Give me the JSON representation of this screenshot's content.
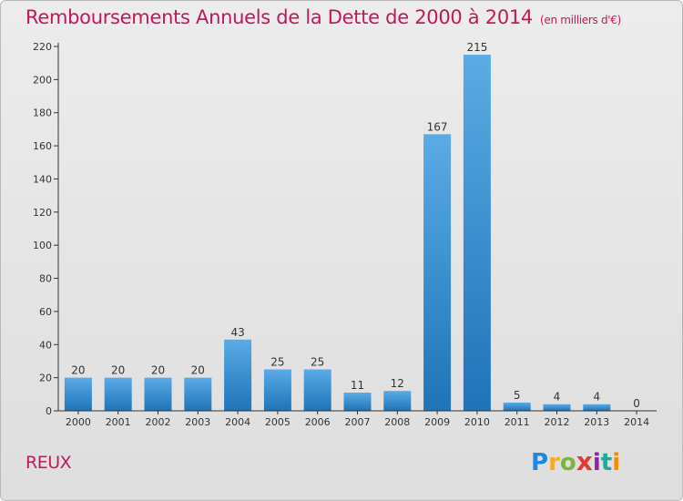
{
  "header": {
    "title": "Remboursements Annuels de la Dette de 2000 à 2014",
    "subtitle": "(en milliers d'€)"
  },
  "footer": {
    "place": "REUX",
    "logo_text": "Proxiti"
  },
  "colors": {
    "bar_light": "#5aabe6",
    "bar_dark": "#1f73b7",
    "title": "#c2185b",
    "axis": "#333333"
  },
  "chart_data": {
    "type": "bar",
    "categories": [
      "2000",
      "2001",
      "2002",
      "2003",
      "2004",
      "2005",
      "2006",
      "2007",
      "2008",
      "2009",
      "2010",
      "2011",
      "2012",
      "2013",
      "2014"
    ],
    "values": [
      20,
      20,
      20,
      20,
      43,
      25,
      25,
      11,
      12,
      167,
      215,
      5,
      4,
      4,
      0
    ],
    "title": "Remboursements Annuels de la Dette de 2000 à 2014",
    "subtitle": "(en milliers d'€)",
    "xlabel": "",
    "ylabel": "",
    "ylim": [
      0,
      220
    ],
    "yticks": [
      0,
      20,
      40,
      60,
      80,
      100,
      120,
      140,
      160,
      180,
      200,
      220
    ],
    "grid": false,
    "legend": "none"
  }
}
